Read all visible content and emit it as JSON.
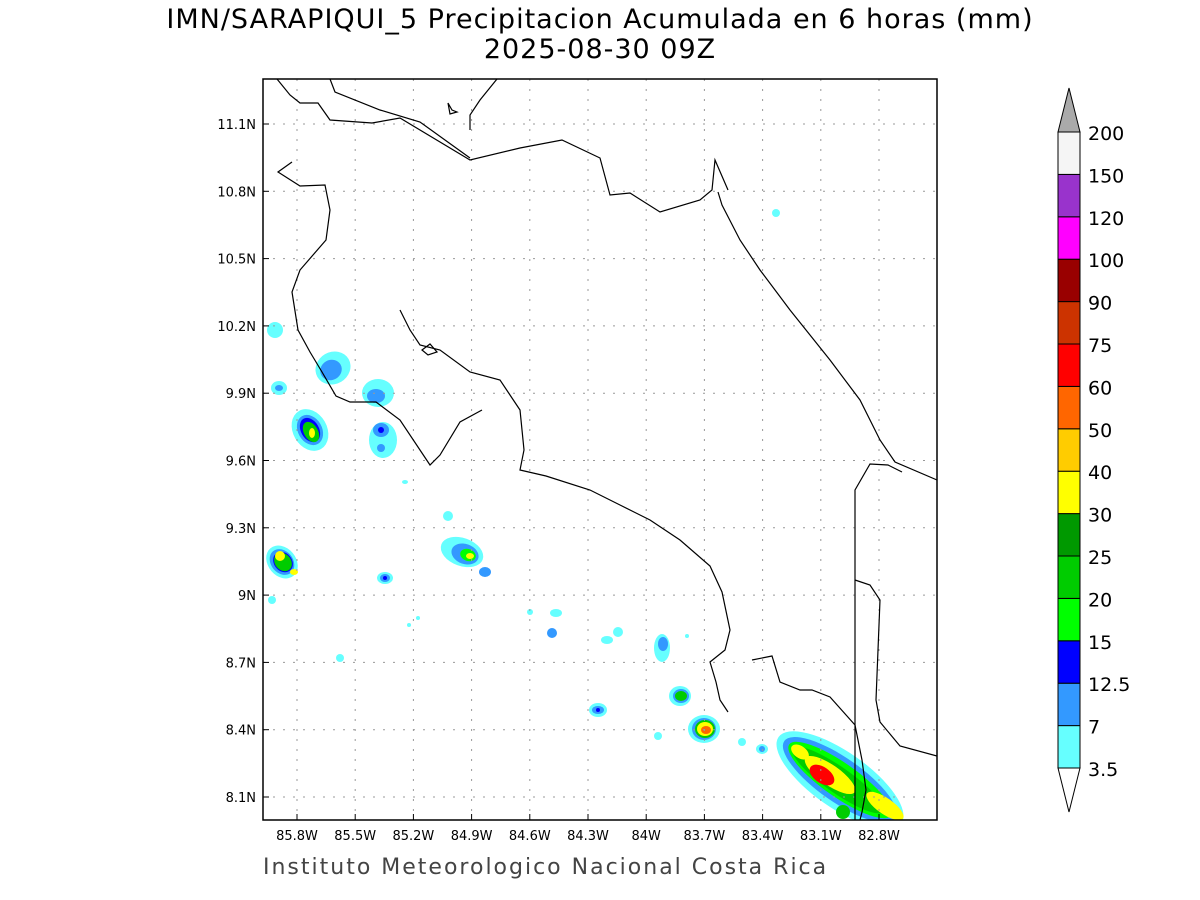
{
  "title": "IMN/SARAPIQUI_5 Precipitacion Acumulada en 6 horas (mm)",
  "subtitle": "2025-08-30 09Z",
  "footer": "Instituto Meteorologico Nacional Costa Rica",
  "map": {
    "lon_ticks": [
      "85.8W",
      "85.5W",
      "85.2W",
      "84.9W",
      "84.6W",
      "84.3W",
      "84W",
      "83.7W",
      "83.4W",
      "83.1W",
      "82.8W"
    ],
    "lat_ticks": [
      "11.1N",
      "10.8N",
      "10.5N",
      "10.2N",
      "9.9N",
      "9.6N",
      "9.3N",
      "9N",
      "8.7N",
      "8.4N",
      "8.1N"
    ],
    "grid": "dotted"
  },
  "colorbar": {
    "labels": [
      "3.5",
      "7",
      "12.5",
      "15",
      "20",
      "25",
      "30",
      "40",
      "50",
      "60",
      "75",
      "90",
      "100",
      "120",
      "150",
      "200"
    ],
    "colors": [
      "#66ffff",
      "#3399ff",
      "#0000ff",
      "#00ff00",
      "#00cc00",
      "#009900",
      "#ffff00",
      "#ffcc00",
      "#ff6600",
      "#ff0000",
      "#cc3300",
      "#990000",
      "#ff00ff",
      "#9933cc",
      "#f5f5f5"
    ],
    "over_color": "#aaaaaa",
    "under_color": "#ffffff"
  }
}
